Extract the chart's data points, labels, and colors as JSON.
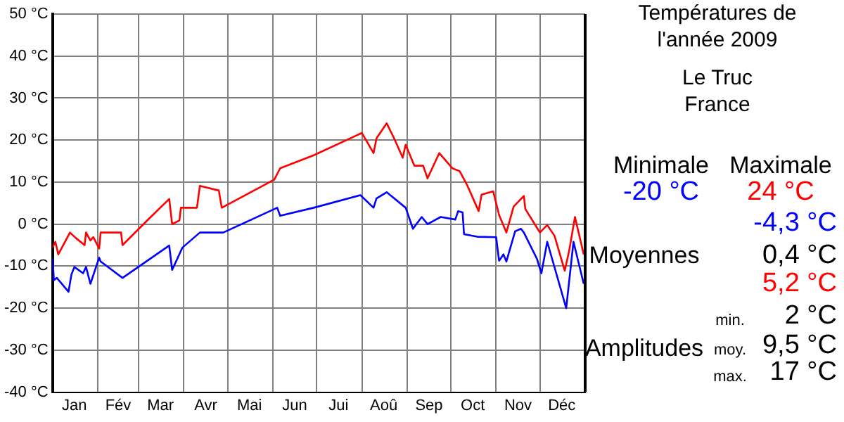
{
  "chart_data": {
    "type": "line",
    "title": "Températures de l'année 2009",
    "subtitle": "Le Truc\nFrance",
    "xlim": [
      "2009-01-01",
      "2010-01-01"
    ],
    "xticks": [
      {
        "value": "2009-01-16",
        "label": "Jan"
      },
      {
        "value": "2009-02-01",
        "label": null
      },
      {
        "value": "2009-02-15",
        "label": "Fév"
      },
      {
        "value": "2009-03-01",
        "label": null
      },
      {
        "value": "2009-03-16",
        "label": "Mar"
      },
      {
        "value": "2009-04-01",
        "label": null
      },
      {
        "value": "2009-04-16",
        "label": "Avr"
      },
      {
        "value": "2009-05-01",
        "label": null
      },
      {
        "value": "2009-05-16",
        "label": "Mai"
      },
      {
        "value": "2009-06-01",
        "label": null
      },
      {
        "value": "2009-06-16",
        "label": "Jun"
      },
      {
        "value": "2009-07-01",
        "label": null
      },
      {
        "value": "2009-07-16",
        "label": "Jui"
      },
      {
        "value": "2009-08-01",
        "label": null
      },
      {
        "value": "2009-08-16",
        "label": "Aoû"
      },
      {
        "value": "2009-09-01",
        "label": null
      },
      {
        "value": "2009-09-16",
        "label": "Sep"
      },
      {
        "value": "2009-10-01",
        "label": null
      },
      {
        "value": "2009-10-16",
        "label": "Oct"
      },
      {
        "value": "2009-11-01",
        "label": null
      },
      {
        "value": "2009-11-16",
        "label": "Nov"
      },
      {
        "value": "2009-12-01",
        "label": null
      },
      {
        "value": "2009-12-16",
        "label": "Déc"
      }
    ],
    "ylim": [
      -40,
      50
    ],
    "yticks": [
      {
        "value": -40,
        "label": "-40 °C"
      },
      {
        "value": -30,
        "label": "-30 °C"
      },
      {
        "value": -20,
        "label": "-20 °C"
      },
      {
        "value": -10,
        "label": "-10 °C"
      },
      {
        "value": 0,
        "label": "0 °C"
      },
      {
        "value": 10,
        "label": "10 °C"
      },
      {
        "value": 20,
        "label": "20 °C"
      },
      {
        "value": 30,
        "label": "30 °C"
      },
      {
        "value": 40,
        "label": "40 °C"
      },
      {
        "value": 50,
        "label": "50 °C"
      }
    ],
    "grid": true,
    "legend": false,
    "marker": "none",
    "series": [
      {
        "color": "#0000ff",
        "x": [
          "2009-01-01",
          "2009-01-02",
          "2009-01-04",
          "2009-01-12",
          "2009-01-14",
          "2009-01-16",
          "2009-01-22",
          "2009-01-24",
          "2009-01-27",
          "2009-02-02",
          "2009-02-03",
          "2009-02-18",
          "2009-03-22",
          "2009-03-24",
          "2009-03-31",
          "2009-04-12",
          "2009-04-28",
          "2009-06-04",
          "2009-06-06",
          "2009-06-29",
          "2009-07-31",
          "2009-08-09",
          "2009-08-11",
          "2009-08-18",
          "2009-08-31",
          "2009-09-05",
          "2009-09-11",
          "2009-09-15",
          "2009-09-24",
          "2009-10-04",
          "2009-10-06",
          "2009-10-09",
          "2009-10-10",
          "2009-10-19",
          "2009-11-01",
          "2009-11-03",
          "2009-11-06",
          "2009-11-08",
          "2009-11-14",
          "2009-11-18",
          "2009-11-20",
          "2009-11-29",
          "2009-12-02",
          "2009-12-06",
          "2009-12-19",
          "2009-12-24",
          "2009-12-31"
        ],
        "values": [
          -8,
          -13.3,
          -12.8,
          -16.1,
          -12,
          -10.2,
          -11.7,
          -10.2,
          -14.2,
          -8,
          -8.9,
          -12.8,
          -5.1,
          -10.9,
          -5.6,
          -2,
          -2,
          3.9,
          2,
          3.9,
          6.9,
          3.9,
          6.1,
          7.6,
          3.9,
          -1.1,
          1.7,
          0,
          1.7,
          1.1,
          3.1,
          2.8,
          -2.4,
          -3,
          -3.1,
          -8.7,
          -7.2,
          -8.9,
          -1.7,
          -1.1,
          -2,
          -8.3,
          -11.7,
          -4.2,
          -20,
          -4.2,
          -14.2
        ]
      },
      {
        "color": "#ff0000",
        "x": [
          "2009-01-01",
          "2009-01-03",
          "2009-01-05",
          "2009-01-13",
          "2009-01-17",
          "2009-01-23",
          "2009-01-24",
          "2009-01-27",
          "2009-01-29",
          "2009-02-02",
          "2009-02-03",
          "2009-02-17",
          "2009-02-18",
          "2009-03-07",
          "2009-03-22",
          "2009-03-24",
          "2009-03-29",
          "2009-03-30",
          "2009-04-10",
          "2009-04-12",
          "2009-04-25",
          "2009-04-27",
          "2009-06-02",
          "2009-06-06",
          "2009-06-29",
          "2009-08-01",
          "2009-08-09",
          "2009-08-11",
          "2009-08-18",
          "2009-08-23",
          "2009-08-29",
          "2009-08-31",
          "2009-09-06",
          "2009-09-12",
          "2009-09-15",
          "2009-09-23",
          "2009-10-02",
          "2009-10-07",
          "2009-10-12",
          "2009-10-20",
          "2009-10-22",
          "2009-10-30",
          "2009-11-03",
          "2009-11-08",
          "2009-11-13",
          "2009-11-20",
          "2009-11-21",
          "2009-12-01",
          "2009-12-06",
          "2009-12-11",
          "2009-12-18",
          "2009-12-21",
          "2009-12-25",
          "2009-12-31"
        ],
        "values": [
          -5.6,
          -4.2,
          -7.2,
          -2,
          -3.3,
          -5,
          -2,
          -3.9,
          -3.1,
          -5.8,
          -2,
          -2,
          -5,
          0.9,
          6,
          0,
          0.9,
          3.9,
          3.9,
          9.1,
          8,
          3.9,
          10.6,
          13.3,
          16.4,
          21.7,
          16.9,
          20.4,
          24,
          20.5,
          15.8,
          18.9,
          13.9,
          13.9,
          10.9,
          16.9,
          13.3,
          12.6,
          9.4,
          3.1,
          7,
          7.8,
          2.2,
          -2,
          4.2,
          6.7,
          3.6,
          -2,
          -0.2,
          -2.8,
          -11.1,
          -6.4,
          1.7,
          -7.2
        ]
      }
    ],
    "annotations": [
      "Minimale",
      "Maximale",
      "-20 °C",
      "24 °C",
      "Moyennes",
      "-4,3 °C",
      "0,4 °C",
      "5,2 °C",
      "Amplitudes",
      "min.",
      "2 °C",
      "moy.",
      "9,5 °C",
      "max.",
      "17 °C"
    ]
  }
}
